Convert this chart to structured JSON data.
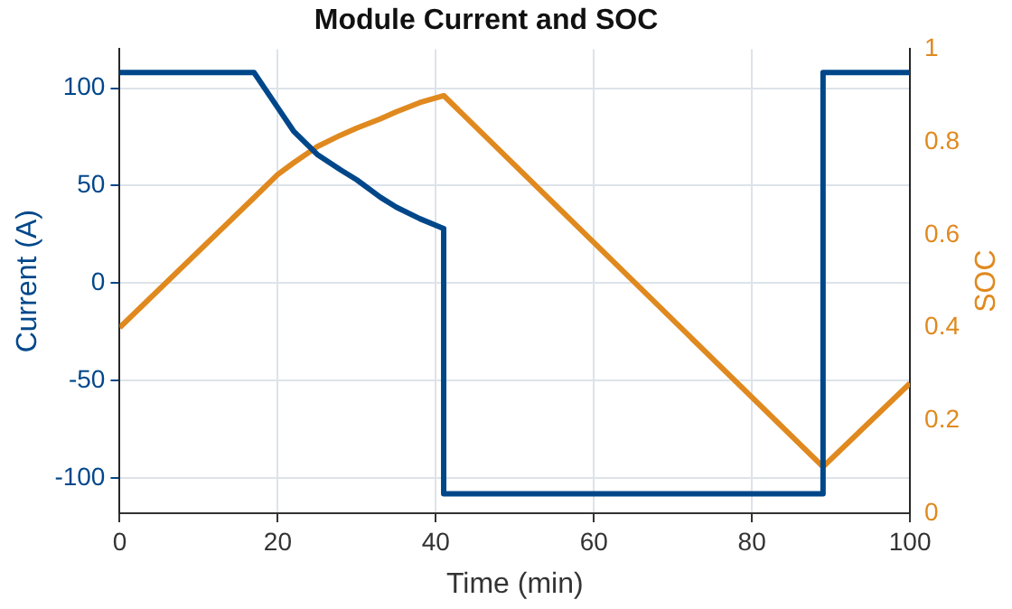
{
  "chart_data": {
    "type": "line",
    "title": "Module Current and SOC",
    "xlabel": "Time (min)",
    "ylabel": "Current (A)",
    "y2label": "SOC",
    "xlim": [
      0,
      100
    ],
    "xticks": [
      0,
      20,
      40,
      60,
      80,
      100
    ],
    "ylim": [
      -118,
      120
    ],
    "yticks": [
      -100,
      -50,
      0,
      50,
      100
    ],
    "y2lim": [
      0,
      1
    ],
    "y2ticks": [
      0,
      0.2,
      0.4,
      0.6,
      0.8,
      1
    ],
    "grid": true,
    "legend": false,
    "marker": "none",
    "line_style": "solid",
    "series": [
      {
        "color": "#00478a",
        "x": [
          0,
          17,
          20,
          22,
          25,
          28,
          30,
          33,
          35,
          38,
          41,
          41,
          89,
          89,
          100
        ],
        "values": [
          108,
          108,
          90,
          78,
          66,
          58,
          53,
          44,
          39,
          33,
          28,
          -108,
          -108,
          108,
          108
        ]
      },
      {
        "color": "#e0891e",
        "axis": "y2",
        "x": [
          0,
          17,
          20,
          22,
          25,
          28,
          30,
          33,
          35,
          38,
          41,
          89,
          100
        ],
        "values": [
          0.4,
          0.68,
          0.73,
          0.755,
          0.79,
          0.815,
          0.83,
          0.85,
          0.865,
          0.885,
          0.9,
          0.1,
          0.28
        ]
      }
    ]
  }
}
